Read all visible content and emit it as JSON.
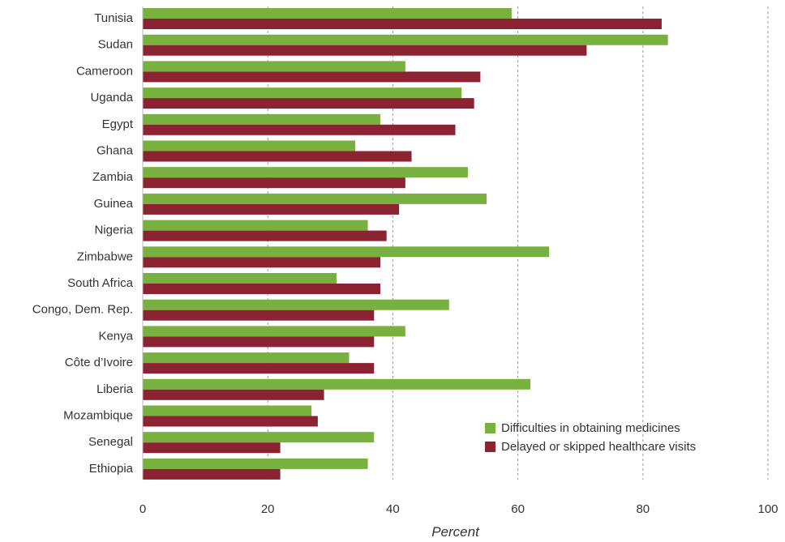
{
  "chart_data": {
    "type": "bar",
    "orientation": "horizontal",
    "categories": [
      "Tunisia",
      "Sudan",
      "Cameroon",
      "Uganda",
      "Egypt",
      "Ghana",
      "Zambia",
      "Guinea",
      "Nigeria",
      "Zimbabwe",
      "South Africa",
      "Congo, Dem. Rep.",
      "Kenya",
      "Côte d’Ivoire",
      "Liberia",
      "Mozambique",
      "Senegal",
      "Ethiopia"
    ],
    "series": [
      {
        "name": "Difficulties in obtaining medicines",
        "color": "#78b13f",
        "values": [
          59,
          84,
          42,
          51,
          38,
          34,
          52,
          55,
          36,
          65,
          31,
          49,
          42,
          33,
          62,
          27,
          37,
          36
        ]
      },
      {
        "name": "Delayed or skipped healthcare visits",
        "color": "#8b2332",
        "values": [
          83,
          71,
          54,
          53,
          50,
          43,
          42,
          41,
          39,
          38,
          38,
          37,
          37,
          37,
          29,
          28,
          22,
          22
        ]
      }
    ],
    "xlabel": "Percent",
    "xlim": [
      0,
      100
    ],
    "xticks": [
      0,
      20,
      40,
      60,
      80,
      100
    ],
    "grid": "vertical-dashed",
    "legend": "bottom-right"
  }
}
